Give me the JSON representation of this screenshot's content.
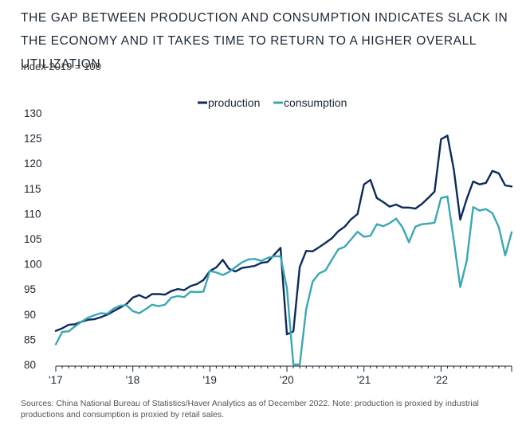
{
  "header": {
    "title": "THE GAP BETWEEN PRODUCTION AND CONSUMPTION INDICATES SLACK IN THE ECONOMY AND IT TAKES TIME TO RETURN TO A HIGHER OVERALL UTILIZATION",
    "subtitle": "Index 2019 = 100"
  },
  "footnote": "Sources: China National Bureau of Statistics/Haver Analytics as of December 2022. Note: production is proxied by industrial productions and consumption is proxied by retail sales.",
  "colors": {
    "production": "#0d2a5c",
    "consumption": "#3ba7b3",
    "axis": "#1b2733"
  },
  "chart_data": {
    "type": "line",
    "title": "THE GAP BETWEEN PRODUCTION AND CONSUMPTION INDICATES SLACK IN THE ECONOMY AND IT TAKES TIME TO RETURN TO A HIGHER OVERALL UTILIZATION",
    "ylabel": "Index 2019 = 100",
    "xlabel": "",
    "ylim": [
      80,
      130
    ],
    "yticks": [
      80,
      85,
      90,
      95,
      100,
      105,
      110,
      115,
      120,
      125,
      130
    ],
    "xlim": [
      0,
      71
    ],
    "xticks": [
      {
        "x": 0,
        "label": "'17"
      },
      {
        "x": 12,
        "label": "'18"
      },
      {
        "x": 24,
        "label": "'19"
      },
      {
        "x": 36,
        "label": "'20"
      },
      {
        "x": 48,
        "label": "'21"
      },
      {
        "x": 60,
        "label": "'22"
      }
    ],
    "legend": "top-center",
    "series": [
      {
        "name": "production",
        "values": [
          86.7,
          87.2,
          87.9,
          88.0,
          88.5,
          88.9,
          89.0,
          89.4,
          89.9,
          90.6,
          91.3,
          92.0,
          93.3,
          93.8,
          93.2,
          94.0,
          94.0,
          93.9,
          94.6,
          95.0,
          94.8,
          95.6,
          96.0,
          96.8,
          98.6,
          99.3,
          100.8,
          99.0,
          98.5,
          99.2,
          99.4,
          99.6,
          100.2,
          100.4,
          101.8,
          103.2,
          86.0,
          86.6,
          99.4,
          102.6,
          102.5,
          103.3,
          104.2,
          105.1,
          106.5,
          107.4,
          108.9,
          109.9,
          115.8,
          116.7,
          113.1,
          112.3,
          111.4,
          111.8,
          111.2,
          111.2,
          111.0,
          111.9,
          113.1,
          114.4,
          124.8,
          125.5,
          118.7,
          108.8,
          112.9,
          116.4,
          115.8,
          116.1,
          118.5,
          118.0,
          115.6,
          115.4
        ]
      },
      {
        "name": "consumption",
        "values": [
          84.0,
          86.5,
          86.6,
          87.6,
          88.5,
          89.3,
          89.8,
          90.2,
          90.1,
          91.1,
          91.7,
          91.8,
          90.6,
          90.2,
          91.0,
          91.9,
          91.6,
          91.9,
          93.3,
          93.6,
          93.4,
          94.5,
          94.4,
          94.5,
          98.6,
          98.3,
          97.8,
          98.4,
          99.4,
          100.3,
          100.9,
          101.0,
          100.6,
          101.2,
          101.5,
          101.5,
          95.2,
          80.0,
          80.0,
          91.0,
          96.5,
          98.1,
          98.7,
          100.8,
          102.9,
          103.4,
          104.9,
          106.4,
          105.4,
          105.6,
          107.9,
          107.5,
          108.1,
          109.0,
          107.3,
          104.3,
          107.4,
          107.9,
          108.0,
          108.2,
          113.1,
          113.4,
          104.6,
          95.4,
          100.6,
          111.3,
          110.6,
          110.9,
          110.1,
          107.3,
          101.7,
          106.3
        ]
      }
    ]
  }
}
